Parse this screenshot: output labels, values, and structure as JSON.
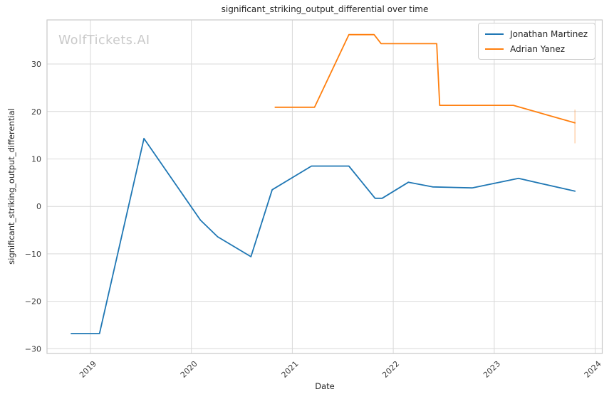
{
  "chart_data": {
    "type": "line",
    "title": "significant_striking_output_differential over time",
    "watermark": "WolfTickets.AI",
    "xlabel": "Date",
    "ylabel": "significant_striking_output_differential",
    "legend_position": "upper right",
    "grid": true,
    "background_color": "#ffffff",
    "grid_color": "#d9d9d9",
    "spine_color": "#c9c9c9",
    "tick_label_color": "#3b3b3b",
    "xlim": [
      2018.57,
      2024.07
    ],
    "ylim": [
      -31.0,
      39.3
    ],
    "x_ticks": [
      2019,
      2020,
      2021,
      2022,
      2023,
      2024
    ],
    "x_tick_labels": [
      "2019",
      "2020",
      "2021",
      "2022",
      "2023",
      "2024"
    ],
    "y_ticks": [
      -30,
      -20,
      -10,
      0,
      10,
      20,
      30
    ],
    "y_tick_labels": [
      "−30",
      "−20",
      "−10",
      "0",
      "10",
      "20",
      "30"
    ],
    "series": [
      {
        "name": "Jonathan Martinez",
        "color": "#1f77b4",
        "x": [
          2018.81,
          2019.09,
          2019.53,
          2020.09,
          2020.26,
          2020.59,
          2020.8,
          2021.19,
          2021.56,
          2021.82,
          2021.89,
          2022.15,
          2022.39,
          2022.78,
          2023.24,
          2023.8
        ],
        "y": [
          -26.8,
          -26.8,
          14.3,
          -2.9,
          -6.4,
          -10.6,
          3.5,
          8.5,
          8.5,
          1.7,
          1.7,
          5.1,
          4.1,
          3.9,
          5.9,
          3.2
        ]
      },
      {
        "name": "Adrian Yanez",
        "color": "#ff7f0e",
        "x": [
          2020.83,
          2021.22,
          2021.56,
          2021.81,
          2021.88,
          2022.43,
          2022.46,
          2023.19,
          2023.8
        ],
        "y": [
          20.9,
          20.9,
          36.2,
          36.2,
          34.3,
          34.3,
          21.3,
          21.3,
          17.6
        ],
        "error_bar": {
          "x": 2023.8,
          "y_low": 13.3,
          "y_high": 20.4
        }
      }
    ]
  }
}
